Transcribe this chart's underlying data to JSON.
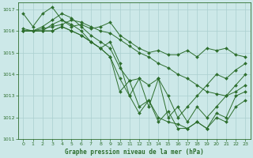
{
  "title": "Graphe pression niveau de la mer (hPa)",
  "bg_color": "#cce8e8",
  "grid_color": "#aacfcf",
  "line_color": "#2d6e2d",
  "marker_color": "#2d6e2d",
  "xlim": [
    -0.5,
    23.5
  ],
  "ylim": [
    1011,
    1017.3
  ],
  "xticks": [
    0,
    1,
    2,
    3,
    4,
    5,
    6,
    7,
    8,
    9,
    10,
    11,
    12,
    13,
    14,
    15,
    16,
    17,
    18,
    19,
    20,
    21,
    22,
    23
  ],
  "yticks": [
    1011,
    1012,
    1013,
    1014,
    1015,
    1016,
    1017
  ],
  "series": [
    [
      1016.8,
      1016.2,
      1016.8,
      1017.1,
      1016.5,
      1016.2,
      1016.3,
      1016.1,
      1016.2,
      1016.4,
      1015.8,
      1015.5,
      1015.2,
      1015.0,
      1015.1,
      1014.9,
      1014.9,
      1015.1,
      1014.8,
      1015.2,
      1015.1,
      1015.2,
      1014.9,
      1014.8
    ],
    [
      1016.0,
      1016.0,
      1016.1,
      1016.2,
      1016.3,
      1016.5,
      1016.4,
      1016.2,
      1016.0,
      1015.9,
      1015.6,
      1015.3,
      1015.0,
      1014.8,
      1014.5,
      1014.3,
      1014.0,
      1013.8,
      1013.5,
      1013.2,
      1013.1,
      1013.0,
      1013.2,
      1013.5
    ],
    [
      1016.1,
      1016.0,
      1016.2,
      1016.5,
      1016.8,
      1016.6,
      1016.2,
      1015.8,
      1015.5,
      1015.2,
      1014.3,
      1013.7,
      1013.8,
      1013.5,
      1013.8,
      1013.0,
      1012.0,
      1012.5,
      1013.0,
      1013.5,
      1014.0,
      1013.8,
      1014.2,
      1014.5
    ],
    [
      1016.0,
      1016.0,
      1016.0,
      1016.3,
      1016.5,
      1016.3,
      1016.0,
      1015.5,
      1015.2,
      1015.5,
      1014.5,
      1013.0,
      1013.8,
      1012.5,
      1013.8,
      1012.0,
      1012.5,
      1011.8,
      1012.5,
      1012.0,
      1012.5,
      1013.0,
      1013.5,
      1014.0
    ],
    [
      1016.0,
      1016.0,
      1016.0,
      1016.0,
      1016.2,
      1016.0,
      1015.8,
      1015.5,
      1015.2,
      1014.8,
      1013.2,
      1013.7,
      1012.5,
      1012.8,
      1012.0,
      1011.8,
      1011.7,
      1011.5,
      1011.8,
      1011.5,
      1012.2,
      1012.0,
      1013.0,
      1013.2
    ],
    [
      1016.0,
      1016.0,
      1016.0,
      1016.0,
      1016.2,
      1016.0,
      1015.8,
      1015.5,
      1015.2,
      1014.8,
      1013.8,
      1013.0,
      1012.2,
      1012.8,
      1011.8,
      1012.3,
      1011.5,
      1011.5,
      1011.8,
      1011.5,
      1012.0,
      1011.8,
      1012.5,
      1012.8
    ]
  ]
}
